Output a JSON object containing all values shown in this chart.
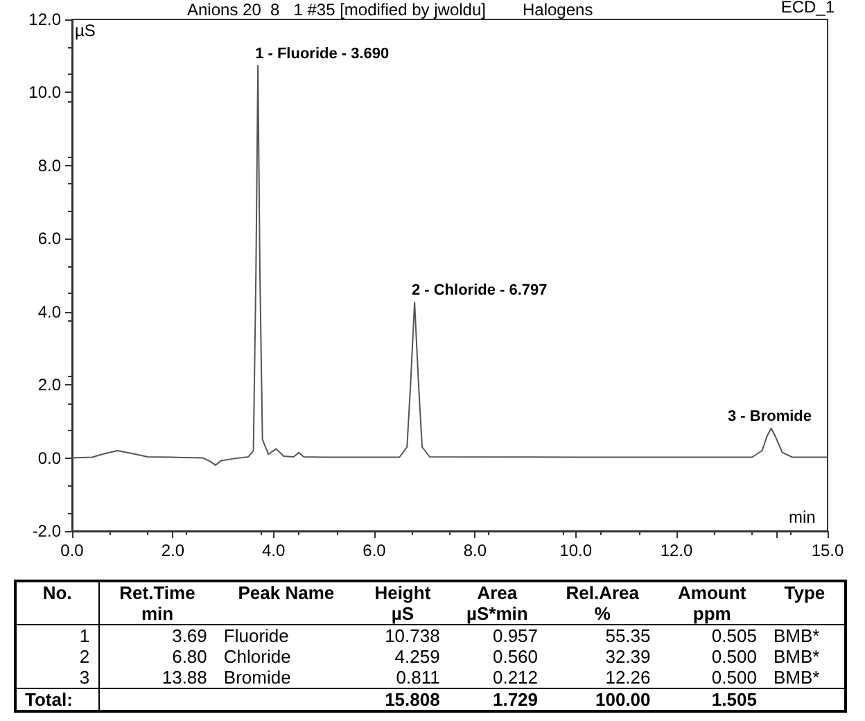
{
  "chart_data": {
    "type": "line",
    "title": "Anions 20  8   1 #35 [modified by jwoldu]",
    "subtitle": "Halogens",
    "xlabel": "min",
    "ylabel": "µS",
    "x": [
      0,
      0.4,
      0.6,
      0.9,
      1.2,
      1.5,
      2.0,
      2.6,
      2.75,
      2.85,
      2.95,
      3.2,
      3.5,
      3.6,
      3.65,
      3.69,
      3.73,
      3.78,
      3.9,
      4.05,
      4.2,
      4.4,
      4.5,
      4.6,
      5.0,
      6.5,
      6.65,
      6.72,
      6.8,
      6.88,
      6.95,
      7.1,
      10,
      13.5,
      13.7,
      13.8,
      13.88,
      13.96,
      14.1,
      14.3,
      15
    ],
    "series": [
      {
        "color": "#555555",
        "values": [
          0,
          0.02,
          0.1,
          0.2,
          0.12,
          0.03,
          0.02,
          0.0,
          -0.1,
          -0.2,
          -0.08,
          -0.02,
          0.03,
          0.2,
          5,
          10.738,
          5,
          0.5,
          0.1,
          0.25,
          0.05,
          0.03,
          0.15,
          0.03,
          0.02,
          0.02,
          0.3,
          2.0,
          4.259,
          2.0,
          0.3,
          0.03,
          0.02,
          0.02,
          0.2,
          0.6,
          0.811,
          0.6,
          0.15,
          0.02,
          0.02
        ]
      }
    ],
    "xlim": [
      0,
      15
    ],
    "ylim": [
      -2,
      12
    ],
    "xticks": [
      {
        "value": 0,
        "label": "0.0"
      },
      {
        "value": 2,
        "label": "2.0"
      },
      {
        "value": 4,
        "label": "4.0"
      },
      {
        "value": 6,
        "label": "6.0"
      },
      {
        "value": 8,
        "label": "8.0"
      },
      {
        "value": 10,
        "label": "10.0"
      },
      {
        "value": 12,
        "label": "12.0"
      },
      {
        "value": 14,
        "label": null
      },
      {
        "value": 15,
        "label": "15.0"
      }
    ],
    "yticks": [
      {
        "value": -2,
        "label": "-2.0"
      },
      {
        "value": 0,
        "label": "0.0"
      },
      {
        "value": 2,
        "label": "2.0"
      },
      {
        "value": 4,
        "label": "4.0"
      },
      {
        "value": 6,
        "label": "6.0"
      },
      {
        "value": 8,
        "label": "8.0"
      },
      {
        "value": 10,
        "label": "10.0"
      },
      {
        "value": 12,
        "label": "12.0"
      }
    ],
    "grid": false,
    "marker": "none",
    "line_style": "solid",
    "annotations": [
      {
        "text": "1 - Fluoride - 3.690",
        "x": 3.69,
        "y": 10.738
      },
      {
        "text": "2 - Chloride - 6.797",
        "x": 6.797,
        "y": 4.259
      },
      {
        "text": "3 - Bromide",
        "x": 13.88,
        "y": 0.811
      },
      "ECD_1",
      "No.\tRet.Time\nmin\tPeak Name\tHeight\nµS\tArea\nµS*min\tRel.Area\n%\tAmount\nppm\tType",
      "1\t3.69\tFluoride\t10.738\t0.957\t55.35\t0.505\tBMB*",
      "2\t6.80\tChloride\t4.259\t0.560\t32.39\t0.500\tBMB*",
      "3\t13.88\tBromide\t0.811\t0.212\t12.26\t0.500\tBMB*",
      "Total:\t\t\t15.808\t1.729\t100.00\t1.505\t"
    ]
  }
}
